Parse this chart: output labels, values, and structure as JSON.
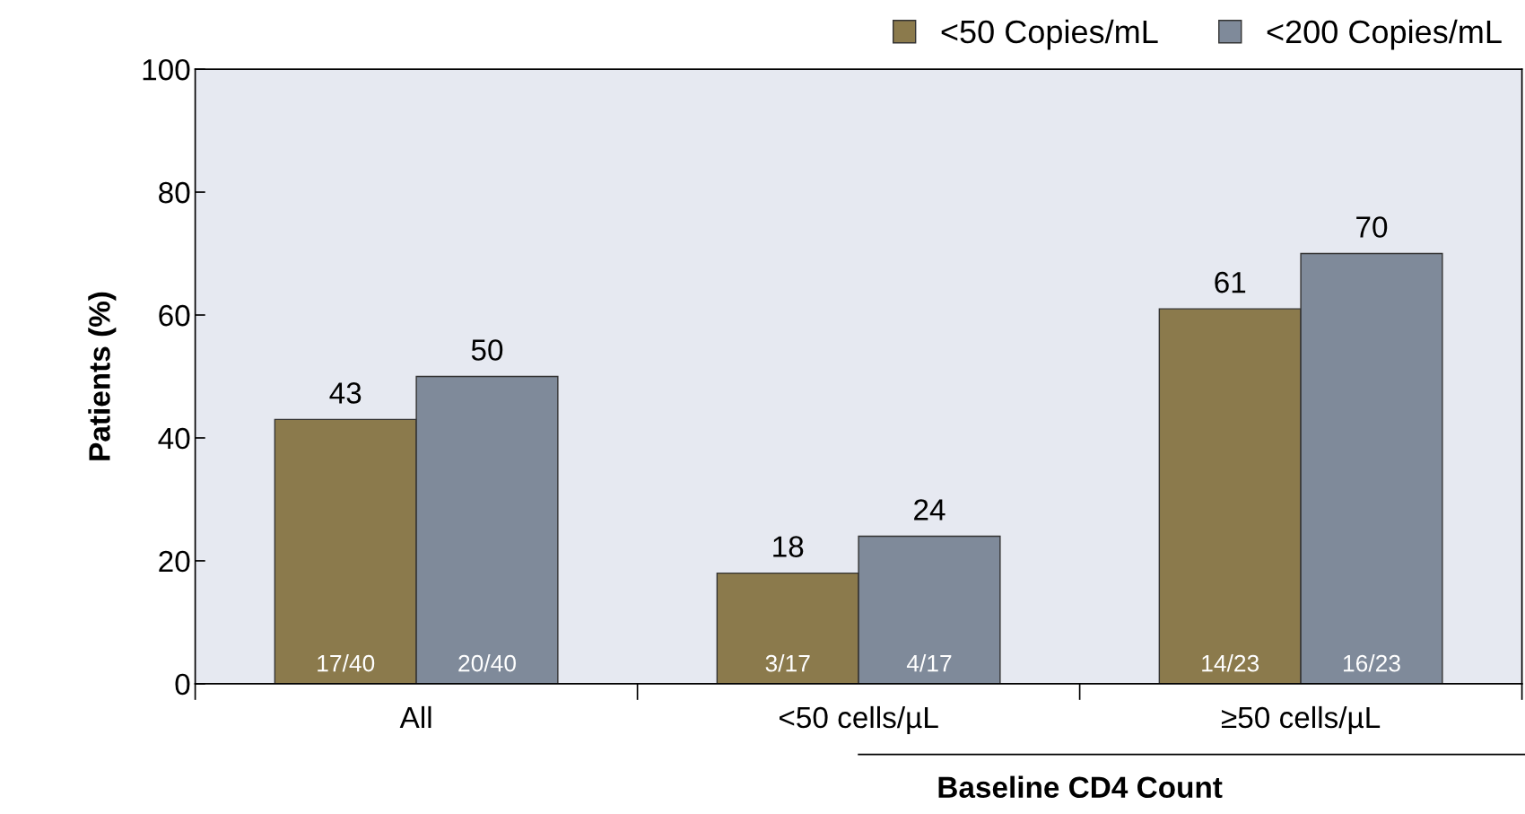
{
  "chart_data": {
    "type": "bar",
    "ylabel": "Patients (%)",
    "categories": [
      "All",
      "<50 cells/µL",
      "≥50 cells/µL"
    ],
    "series": [
      {
        "name": "<50 Copies/mL",
        "color": "#8b7a4c",
        "values": [
          43,
          18,
          61
        ]
      },
      {
        "name": "<200 Copies/mL",
        "color": "#7f8a9a",
        "values": [
          50,
          24,
          70
        ]
      }
    ],
    "ylim": [
      0,
      100
    ],
    "yticks": [
      0,
      20,
      40,
      60,
      80,
      100
    ],
    "data_labels": true,
    "legend": "top right",
    "grid": false,
    "annotations": [
      {
        "text": "17/40",
        "x": "All",
        "y": 0
      },
      {
        "text": "20/40",
        "x": "All",
        "y": 0
      },
      {
        "text": "3/17",
        "x": "<50 cells/µL",
        "y": 0
      },
      {
        "text": "4/17",
        "x": "<50 cells/µL",
        "y": 0
      },
      {
        "text": "14/23",
        "x": "≥50 cells/µL",
        "y": 0
      },
      {
        "text": "16/23",
        "x": "≥50 cells/µL",
        "y": 0
      },
      "Baseline CD4 Count"
    ]
  }
}
